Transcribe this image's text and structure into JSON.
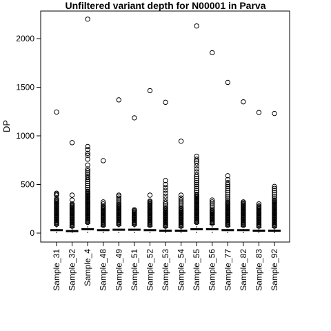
{
  "chart_data": {
    "type": "boxplot",
    "title": "Unfiltered variant depth for N00001 in Parva",
    "xlabel": "",
    "ylabel": "DP",
    "ylim": [
      -60,
      2260
    ],
    "yticks": [
      0,
      500,
      1000,
      1500,
      2000
    ],
    "grid": false,
    "legend": "none",
    "categories": [
      "Sample_31",
      "Sample_32",
      "Sample_4",
      "Sample_48",
      "Sample_49",
      "Sample_51",
      "Sample_52",
      "Sample_53",
      "Sample_54",
      "Sample_55",
      "Sample_56",
      "Sample_77",
      "Sample_82",
      "Sample_83",
      "Sample_92"
    ],
    "medians": [
      30,
      20,
      40,
      30,
      35,
      35,
      30,
      25,
      25,
      40,
      40,
      30,
      30,
      25,
      25
    ],
    "whiskers_low": [
      0,
      0,
      0,
      0,
      0,
      0,
      0,
      0,
      0,
      0,
      0,
      0,
      0,
      0,
      0
    ],
    "whiskers_high": [
      80,
      60,
      100,
      70,
      80,
      80,
      70,
      60,
      60,
      100,
      90,
      70,
      70,
      60,
      60
    ],
    "outliers": [
      [
        90,
        100,
        110,
        120,
        130,
        140,
        150,
        160,
        170,
        180,
        190,
        200,
        210,
        220,
        230,
        240,
        250,
        260,
        270,
        280,
        290,
        300,
        310,
        320,
        330,
        340,
        350,
        390,
        400,
        410,
        1245
      ],
      [
        70,
        80,
        90,
        100,
        110,
        120,
        130,
        140,
        150,
        160,
        170,
        180,
        190,
        200,
        210,
        220,
        230,
        240,
        250,
        260,
        270,
        280,
        290,
        300,
        340,
        390,
        930
      ],
      [
        110,
        120,
        130,
        140,
        150,
        160,
        170,
        180,
        190,
        200,
        210,
        220,
        230,
        240,
        250,
        260,
        270,
        280,
        290,
        300,
        310,
        320,
        330,
        340,
        350,
        360,
        370,
        380,
        390,
        400,
        410,
        420,
        430,
        450,
        470,
        490,
        510,
        530,
        550,
        570,
        580,
        600,
        620,
        640,
        660,
        700,
        760,
        800,
        820,
        860,
        890,
        2200
      ],
      [
        80,
        90,
        100,
        110,
        120,
        130,
        140,
        150,
        160,
        170,
        180,
        190,
        200,
        210,
        220,
        230,
        240,
        250,
        260,
        270,
        280,
        300,
        320,
        745
      ],
      [
        90,
        100,
        110,
        120,
        130,
        140,
        150,
        160,
        170,
        180,
        190,
        200,
        210,
        220,
        230,
        240,
        250,
        260,
        270,
        280,
        290,
        300,
        320,
        340,
        360,
        380,
        390,
        1370
      ],
      [
        90,
        100,
        110,
        120,
        130,
        140,
        150,
        160,
        170,
        180,
        190,
        200,
        210,
        220,
        230,
        240,
        1185
      ],
      [
        80,
        90,
        100,
        110,
        120,
        130,
        140,
        150,
        160,
        170,
        180,
        190,
        200,
        210,
        220,
        230,
        240,
        250,
        260,
        270,
        280,
        290,
        300,
        310,
        320,
        330,
        390,
        1465
      ],
      [
        70,
        80,
        90,
        100,
        110,
        120,
        130,
        140,
        150,
        160,
        170,
        180,
        190,
        200,
        210,
        220,
        230,
        240,
        250,
        260,
        280,
        300,
        320,
        350,
        380,
        410,
        440,
        470,
        500,
        540,
        1345
      ],
      [
        70,
        80,
        90,
        100,
        110,
        120,
        130,
        140,
        150,
        160,
        170,
        180,
        190,
        200,
        210,
        220,
        230,
        240,
        250,
        260,
        280,
        300,
        320,
        340,
        360,
        390,
        945
      ],
      [
        110,
        120,
        130,
        140,
        150,
        160,
        170,
        180,
        190,
        200,
        210,
        220,
        230,
        240,
        250,
        260,
        270,
        280,
        290,
        300,
        310,
        320,
        330,
        340,
        350,
        360,
        370,
        380,
        390,
        400,
        420,
        440,
        460,
        480,
        500,
        520,
        540,
        560,
        580,
        600,
        630,
        660,
        690,
        720,
        740,
        760,
        790,
        2130
      ],
      [
        100,
        110,
        120,
        130,
        140,
        150,
        160,
        170,
        180,
        190,
        200,
        210,
        220,
        230,
        240,
        260,
        280,
        300,
        320,
        340,
        1855
      ],
      [
        80,
        90,
        100,
        110,
        120,
        130,
        140,
        150,
        160,
        170,
        180,
        190,
        200,
        210,
        220,
        230,
        240,
        250,
        260,
        270,
        280,
        290,
        300,
        310,
        320,
        340,
        360,
        380,
        400,
        420,
        440,
        460,
        480,
        500,
        520,
        550,
        590,
        1550
      ],
      [
        80,
        90,
        100,
        110,
        120,
        130,
        140,
        150,
        160,
        170,
        180,
        190,
        200,
        210,
        220,
        230,
        240,
        250,
        260,
        270,
        280,
        290,
        300,
        310,
        320,
        1350
      ],
      [
        70,
        80,
        90,
        100,
        110,
        120,
        130,
        140,
        150,
        160,
        170,
        180,
        190,
        200,
        210,
        220,
        230,
        240,
        250,
        260,
        270,
        280,
        300,
        1240
      ],
      [
        70,
        80,
        90,
        100,
        110,
        120,
        130,
        140,
        150,
        160,
        170,
        180,
        190,
        200,
        210,
        220,
        230,
        240,
        250,
        260,
        270,
        280,
        290,
        300,
        310,
        320,
        330,
        340,
        360,
        380,
        400,
        420,
        440,
        460,
        480,
        1230
      ]
    ]
  }
}
